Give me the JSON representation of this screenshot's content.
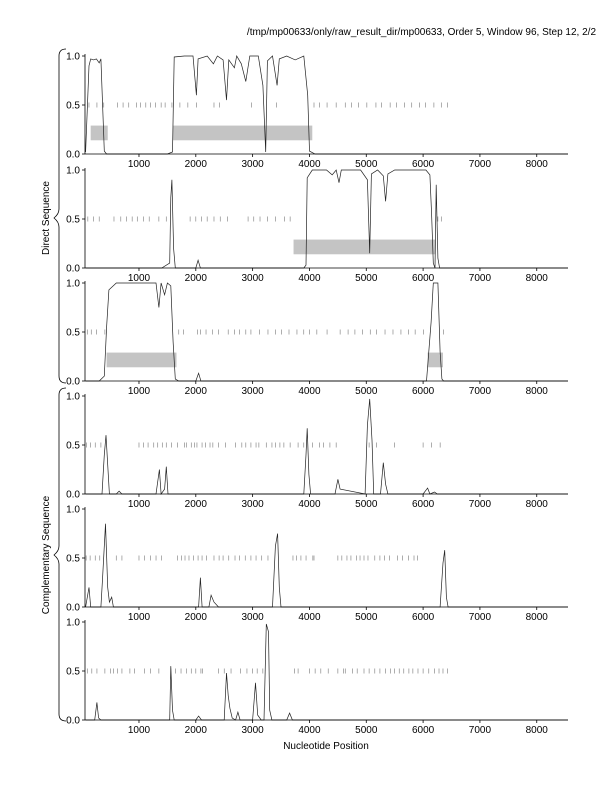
{
  "header_title": "/tmp/mp00633/only/raw_result_dir/mp00633, Order 5, Window 96, Step 12, 2/2",
  "xlabel": "Nucleotide Position",
  "group_labels": {
    "direct": "Direct Sequence",
    "complementary": "Complementary Sequence"
  },
  "chart_data": {
    "type": "line",
    "xlim": [
      50,
      8550
    ],
    "ylim": [
      0,
      1
    ],
    "x_ticks": [
      1000,
      2000,
      3000,
      4000,
      5000,
      6000,
      7000,
      8000
    ],
    "y_ticks": [
      0.0,
      0.5,
      1.0
    ],
    "y_tick_labels": [
      "0.0",
      "0.5",
      "1.0"
    ],
    "panels": [
      {
        "group": "direct",
        "frame": 1,
        "regions": [
          [
            150,
            450
          ],
          [
            1600,
            4050
          ]
        ],
        "midline_ticks": [
          120,
          260,
          380,
          620,
          720,
          820,
          960,
          1030,
          1120,
          1200,
          1290,
          1390,
          1460,
          1580,
          1720,
          1860,
          2010,
          2320,
          2420,
          2980,
          3420,
          4080,
          4180,
          4310,
          4470,
          4630,
          4740,
          4860,
          5010,
          5170,
          5270,
          5420,
          5530,
          5670,
          5800,
          5940,
          6040,
          6190,
          6320,
          6430
        ],
        "line": [
          [
            60,
            0.02
          ],
          [
            120,
            0.9
          ],
          [
            150,
            0.97
          ],
          [
            200,
            0.96
          ],
          [
            250,
            0.97
          ],
          [
            300,
            0.93
          ],
          [
            330,
            0.97
          ],
          [
            360,
            0.5
          ],
          [
            390,
            0.03
          ],
          [
            430,
            0.0
          ],
          [
            900,
            0.0
          ],
          [
            1500,
            0.0
          ],
          [
            1590,
            0.02
          ],
          [
            1620,
            0.99
          ],
          [
            1800,
            1.0
          ],
          [
            1950,
            1.0
          ],
          [
            2010,
            0.6
          ],
          [
            2040,
            0.97
          ],
          [
            2200,
            1.0
          ],
          [
            2310,
            0.92
          ],
          [
            2380,
            1.0
          ],
          [
            2480,
            0.96
          ],
          [
            2540,
            0.55
          ],
          [
            2580,
            0.96
          ],
          [
            2680,
            0.88
          ],
          [
            2720,
            1.0
          ],
          [
            2800,
            0.92
          ],
          [
            2880,
            0.74
          ],
          [
            2950,
            1.0
          ],
          [
            3100,
            1.0
          ],
          [
            3180,
            0.7
          ],
          [
            3230,
            0.02
          ],
          [
            3260,
            0.95
          ],
          [
            3350,
            1.0
          ],
          [
            3430,
            0.7
          ],
          [
            3470,
            0.97
          ],
          [
            3600,
            1.0
          ],
          [
            3750,
            0.96
          ],
          [
            3900,
            1.0
          ],
          [
            3970,
            0.6
          ],
          [
            4000,
            0.03
          ],
          [
            4100,
            0.0
          ],
          [
            8550,
            0.0
          ]
        ]
      },
      {
        "group": "direct",
        "frame": 2,
        "regions": [
          [
            3720,
            6220
          ]
        ],
        "midline_ticks": [
          100,
          200,
          300,
          560,
          680,
          780,
          880,
          970,
          1080,
          1180,
          1350,
          1480,
          1900,
          2000,
          2100,
          2200,
          2320,
          2430,
          2560,
          2920,
          3020,
          3130,
          3260,
          3400,
          3560,
          3660,
          6260,
          6320
        ],
        "line": [
          [
            60,
            0.0
          ],
          [
            500,
            0.0
          ],
          [
            1400,
            0.0
          ],
          [
            1540,
            0.05
          ],
          [
            1560,
            0.72
          ],
          [
            1580,
            0.9
          ],
          [
            1610,
            0.2
          ],
          [
            1640,
            0.0
          ],
          [
            2000,
            0.0
          ],
          [
            2040,
            0.08
          ],
          [
            2080,
            0.0
          ],
          [
            3900,
            0.0
          ],
          [
            3940,
            0.03
          ],
          [
            3960,
            0.92
          ],
          [
            4050,
            1.0
          ],
          [
            4300,
            1.0
          ],
          [
            4400,
            0.95
          ],
          [
            4470,
            1.0
          ],
          [
            4520,
            0.87
          ],
          [
            4560,
            1.0
          ],
          [
            4900,
            1.0
          ],
          [
            5020,
            0.9
          ],
          [
            5060,
            0.15
          ],
          [
            5090,
            0.96
          ],
          [
            5200,
            1.0
          ],
          [
            5300,
            0.94
          ],
          [
            5340,
            0.68
          ],
          [
            5380,
            0.96
          ],
          [
            5500,
            1.0
          ],
          [
            6050,
            1.0
          ],
          [
            6120,
            0.95
          ],
          [
            6150,
            0.55
          ],
          [
            6180,
            0.05
          ],
          [
            6210,
            0.0
          ],
          [
            6230,
            0.85
          ],
          [
            6260,
            0.1
          ],
          [
            6290,
            0.0
          ],
          [
            8550,
            0.0
          ]
        ]
      },
      {
        "group": "direct",
        "frame": 3,
        "regions": [
          [
            430,
            1660
          ],
          [
            6080,
            6350
          ]
        ],
        "midline_ticks": [
          90,
          160,
          250,
          400,
          1700,
          1780,
          2030,
          2080,
          2180,
          2290,
          2400,
          2570,
          2680,
          2770,
          2880,
          2970,
          3120,
          3270,
          3400,
          3510,
          3640,
          3780,
          3900,
          4000,
          4130,
          4310,
          4540,
          4680,
          4800,
          4930,
          5070,
          5180,
          5330,
          5470,
          5610,
          5740,
          5860,
          6010,
          6360
        ],
        "line": [
          [
            60,
            0.0
          ],
          [
            300,
            0.0
          ],
          [
            390,
            0.05
          ],
          [
            430,
            0.55
          ],
          [
            470,
            0.93
          ],
          [
            600,
            1.0
          ],
          [
            800,
            1.0
          ],
          [
            1100,
            1.0
          ],
          [
            1300,
            1.0
          ],
          [
            1350,
            0.75
          ],
          [
            1390,
            1.0
          ],
          [
            1450,
            0.88
          ],
          [
            1500,
            1.0
          ],
          [
            1560,
            0.97
          ],
          [
            1600,
            0.4
          ],
          [
            1640,
            0.02
          ],
          [
            1700,
            0.0
          ],
          [
            2000,
            0.0
          ],
          [
            2050,
            0.08
          ],
          [
            2090,
            0.0
          ],
          [
            6060,
            0.0
          ],
          [
            6140,
            0.6
          ],
          [
            6180,
            1.0
          ],
          [
            6260,
            1.0
          ],
          [
            6300,
            0.3
          ],
          [
            6330,
            0.02
          ],
          [
            6360,
            0.0
          ],
          [
            8550,
            0.0
          ]
        ]
      },
      {
        "group": "complementary",
        "frame": 1,
        "regions": [],
        "midline_ticks": [
          80,
          150,
          230,
          330,
          1000,
          1080,
          1160,
          1260,
          1330,
          1410,
          1480,
          1570,
          1680,
          1800,
          1840,
          1920,
          1980,
          2020,
          2110,
          2170,
          2250,
          2300,
          2400,
          2520,
          2700,
          2810,
          2880,
          2970,
          3060,
          3110,
          3240,
          3340,
          3400,
          3480,
          3550,
          3660,
          3800,
          3900,
          4050,
          4180,
          4250,
          4360,
          4470,
          5050,
          5180,
          5500,
          6000,
          6150,
          6300
        ],
        "line": [
          [
            60,
            0.0
          ],
          [
            350,
            0.0
          ],
          [
            390,
            0.4
          ],
          [
            420,
            0.6
          ],
          [
            450,
            0.3
          ],
          [
            480,
            0.0
          ],
          [
            600,
            0.0
          ],
          [
            650,
            0.03
          ],
          [
            700,
            0.0
          ],
          [
            1300,
            0.0
          ],
          [
            1360,
            0.25
          ],
          [
            1390,
            0.0
          ],
          [
            1450,
            0.05
          ],
          [
            1480,
            0.28
          ],
          [
            1510,
            0.0
          ],
          [
            3900,
            0.0
          ],
          [
            3940,
            0.4
          ],
          [
            3960,
            0.67
          ],
          [
            3990,
            0.2
          ],
          [
            4020,
            0.0
          ],
          [
            4450,
            0.0
          ],
          [
            4500,
            0.15
          ],
          [
            4540,
            0.05
          ],
          [
            4980,
            0.0
          ],
          [
            5020,
            0.7
          ],
          [
            5060,
            0.97
          ],
          [
            5100,
            0.55
          ],
          [
            5130,
            0.0
          ],
          [
            5250,
            0.0
          ],
          [
            5300,
            0.32
          ],
          [
            5340,
            0.1
          ],
          [
            5380,
            0.0
          ],
          [
            6000,
            0.0
          ],
          [
            6080,
            0.06
          ],
          [
            6120,
            0.0
          ],
          [
            6200,
            0.02
          ],
          [
            6250,
            0.0
          ],
          [
            8550,
            0.0
          ]
        ]
      },
      {
        "group": "complementary",
        "frame": 2,
        "regions": [],
        "midline_ticks": [
          70,
          140,
          230,
          310,
          600,
          700,
          1000,
          1100,
          1200,
          1300,
          1400,
          1680,
          1750,
          1810,
          1880,
          1960,
          2040,
          2110,
          2190,
          2320,
          2410,
          2480,
          2580,
          2690,
          2770,
          2870,
          2970,
          3060,
          3160,
          3270,
          3710,
          3770,
          3850,
          3940,
          4060,
          4080,
          4500,
          4570,
          4660,
          4730,
          4830,
          4890,
          4960,
          5030,
          5150,
          5240,
          5320,
          5410,
          5550,
          5640,
          5740,
          5840,
          5900
        ],
        "line": [
          [
            60,
            0.0
          ],
          [
            120,
            0.2
          ],
          [
            150,
            0.0
          ],
          [
            330,
            0.0
          ],
          [
            360,
            0.3
          ],
          [
            410,
            0.85
          ],
          [
            450,
            0.2
          ],
          [
            480,
            0.05
          ],
          [
            520,
            0.1
          ],
          [
            550,
            0.0
          ],
          [
            1000,
            0.0
          ],
          [
            2050,
            0.0
          ],
          [
            2080,
            0.3
          ],
          [
            2110,
            0.0
          ],
          [
            2230,
            0.0
          ],
          [
            2270,
            0.12
          ],
          [
            2320,
            0.05
          ],
          [
            2400,
            0.0
          ],
          [
            3350,
            0.0
          ],
          [
            3400,
            0.62
          ],
          [
            3440,
            0.75
          ],
          [
            3470,
            0.2
          ],
          [
            3500,
            0.0
          ],
          [
            6300,
            0.0
          ],
          [
            6350,
            0.45
          ],
          [
            6380,
            0.58
          ],
          [
            6410,
            0.1
          ],
          [
            6440,
            0.0
          ],
          [
            8550,
            0.0
          ]
        ]
      },
      {
        "group": "complementary",
        "frame": 3,
        "regions": [],
        "midline_ticks": [
          90,
          170,
          260,
          400,
          500,
          550,
          620,
          700,
          840,
          920,
          1100,
          1200,
          1350,
          1560,
          1640,
          1740,
          1840,
          1920,
          2000,
          2090,
          2120,
          2400,
          2500,
          2620,
          2790,
          2900,
          3000,
          3080,
          3180,
          3740,
          3800,
          4000,
          4100,
          4200,
          4330,
          4500,
          4600,
          4630,
          4760,
          4840,
          4960,
          5050,
          5150,
          5240,
          5340,
          5430,
          5500,
          5580,
          5660,
          5750,
          5820,
          5910,
          6000,
          6100,
          6200,
          6280,
          6350,
          6430
        ],
        "line": [
          [
            60,
            0.0
          ],
          [
            220,
            0.0
          ],
          [
            260,
            0.18
          ],
          [
            290,
            0.02
          ],
          [
            330,
            0.0
          ],
          [
            1540,
            0.0
          ],
          [
            1560,
            0.55
          ],
          [
            1590,
            0.1
          ],
          [
            1620,
            0.0
          ],
          [
            2000,
            0.0
          ],
          [
            2050,
            0.04
          ],
          [
            2100,
            0.0
          ],
          [
            2500,
            0.0
          ],
          [
            2540,
            0.48
          ],
          [
            2570,
            0.25
          ],
          [
            2600,
            0.12
          ],
          [
            2640,
            0.02
          ],
          [
            2700,
            0.0
          ],
          [
            2740,
            0.08
          ],
          [
            2780,
            0.0
          ],
          [
            3000,
            0.0
          ],
          [
            3050,
            0.38
          ],
          [
            3090,
            0.05
          ],
          [
            3150,
            0.0
          ],
          [
            3200,
            0.0
          ],
          [
            3240,
            0.98
          ],
          [
            3280,
            0.9
          ],
          [
            3300,
            0.1
          ],
          [
            3340,
            0.0
          ],
          [
            3600,
            0.0
          ],
          [
            3650,
            0.07
          ],
          [
            3700,
            0.0
          ],
          [
            8550,
            0.0
          ]
        ]
      }
    ]
  }
}
